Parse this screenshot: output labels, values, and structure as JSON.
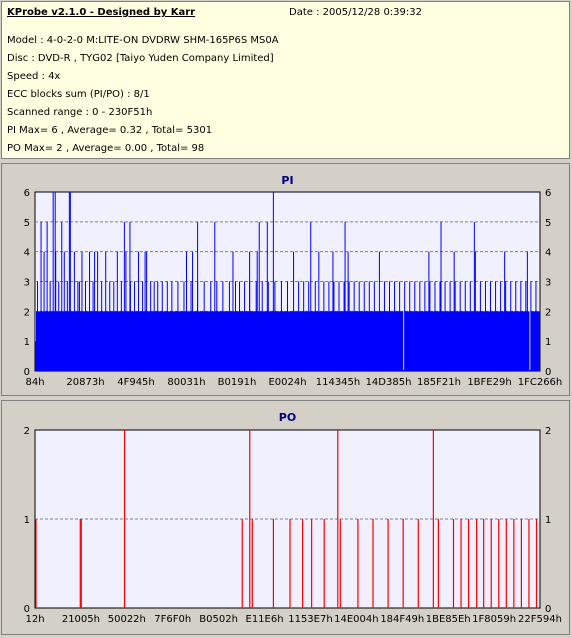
{
  "info": {
    "title": "KProbe v2.1.0 - Designed by Karr",
    "date": "Date : 2005/12/28 0:39:32",
    "model": "Model : 4-0-2-0 M:LITE-ON DVDRW SHM-165P6S MS0A",
    "disc": "Disc : DVD-R , TYG02 [Taiyo Yuden Company Limited]",
    "speed": "Speed : 4x",
    "ecc": "ECC blocks sum (PI/PO) : 8/1",
    "range": "Scanned range : 0 - 230F51h",
    "pi_stats": "PI Max= 6 , Average= 0.32 , Total= 5301",
    "po_stats": "PO Max= 2 , Average= 0.00 , Total= 98"
  },
  "colors": {
    "pi": "#0000ff",
    "po": "#ff0000",
    "plot_bg": "#f0f0ff",
    "info_bg": "#ffffe1"
  },
  "chart_data": [
    {
      "type": "bar",
      "title": "PI",
      "ylim": [
        0,
        6
      ],
      "yticks": [
        "0",
        "1",
        "2",
        "3",
        "4",
        "5",
        "6"
      ],
      "xtick_labels": [
        "84h",
        "20873h",
        "4F945h",
        "80031h",
        "B0191h",
        "E0024h",
        "114345h",
        "14D385h",
        "185F21h",
        "1BFE29h",
        "1FC266h"
      ],
      "grid": true,
      "baseline_value": 2,
      "spikes": [
        {
          "x": 0.005,
          "v": 3
        },
        {
          "x": 0.012,
          "v": 5
        },
        {
          "x": 0.018,
          "v": 4
        },
        {
          "x": 0.024,
          "v": 5
        },
        {
          "x": 0.03,
          "v": 3
        },
        {
          "x": 0.036,
          "v": 6
        },
        {
          "x": 0.041,
          "v": 4
        },
        {
          "x": 0.047,
          "v": 3
        },
        {
          "x": 0.053,
          "v": 5
        },
        {
          "x": 0.058,
          "v": 4
        },
        {
          "x": 0.064,
          "v": 3
        },
        {
          "x": 0.07,
          "v": 6
        },
        {
          "x": 0.078,
          "v": 4
        },
        {
          "x": 0.085,
          "v": 3
        },
        {
          "x": 0.093,
          "v": 4
        },
        {
          "x": 0.1,
          "v": 3
        },
        {
          "x": 0.108,
          "v": 4
        },
        {
          "x": 0.115,
          "v": 3
        },
        {
          "x": 0.124,
          "v": 4
        },
        {
          "x": 0.132,
          "v": 3
        },
        {
          "x": 0.14,
          "v": 4
        },
        {
          "x": 0.148,
          "v": 3
        },
        {
          "x": 0.156,
          "v": 3
        },
        {
          "x": 0.163,
          "v": 4
        },
        {
          "x": 0.171,
          "v": 3
        },
        {
          "x": 0.18,
          "v": 4
        },
        {
          "x": 0.189,
          "v": 3
        },
        {
          "x": 0.197,
          "v": 3
        },
        {
          "x": 0.205,
          "v": 4
        },
        {
          "x": 0.213,
          "v": 3
        },
        {
          "x": 0.221,
          "v": 4
        },
        {
          "x": 0.229,
          "v": 3
        },
        {
          "x": 0.236,
          "v": 3
        },
        {
          "x": 0.243,
          "v": 3
        },
        {
          "x": 0.252,
          "v": 3
        },
        {
          "x": 0.262,
          "v": 3
        },
        {
          "x": 0.271,
          "v": 3
        },
        {
          "x": 0.283,
          "v": 3
        },
        {
          "x": 0.295,
          "v": 3
        },
        {
          "x": 0.309,
          "v": 3
        },
        {
          "x": 0.312,
          "v": 4
        },
        {
          "x": 0.322,
          "v": 3
        },
        {
          "x": 0.335,
          "v": 3
        },
        {
          "x": 0.348,
          "v": 3
        },
        {
          "x": 0.36,
          "v": 3
        },
        {
          "x": 0.372,
          "v": 3
        },
        {
          "x": 0.385,
          "v": 3
        },
        {
          "x": 0.397,
          "v": 3
        },
        {
          "x": 0.405,
          "v": 3
        },
        {
          "x": 0.415,
          "v": 3
        },
        {
          "x": 0.425,
          "v": 3
        },
        {
          "x": 0.438,
          "v": 3
        },
        {
          "x": 0.45,
          "v": 3
        },
        {
          "x": 0.462,
          "v": 3
        },
        {
          "x": 0.475,
          "v": 3
        },
        {
          "x": 0.488,
          "v": 3
        },
        {
          "x": 0.5,
          "v": 3
        },
        {
          "x": 0.512,
          "v": 4
        },
        {
          "x": 0.522,
          "v": 3
        },
        {
          "x": 0.532,
          "v": 3
        },
        {
          "x": 0.542,
          "v": 3
        },
        {
          "x": 0.555,
          "v": 3
        },
        {
          "x": 0.562,
          "v": 4
        },
        {
          "x": 0.572,
          "v": 3
        },
        {
          "x": 0.582,
          "v": 3
        },
        {
          "x": 0.592,
          "v": 3
        },
        {
          "x": 0.602,
          "v": 3
        },
        {
          "x": 0.612,
          "v": 3
        },
        {
          "x": 0.622,
          "v": 3
        },
        {
          "x": 0.632,
          "v": 3
        },
        {
          "x": 0.642,
          "v": 3
        },
        {
          "x": 0.652,
          "v": 3
        },
        {
          "x": 0.662,
          "v": 3
        },
        {
          "x": 0.672,
          "v": 3
        },
        {
          "x": 0.682,
          "v": 4
        },
        {
          "x": 0.692,
          "v": 3
        },
        {
          "x": 0.702,
          "v": 3
        },
        {
          "x": 0.712,
          "v": 3
        },
        {
          "x": 0.722,
          "v": 3
        },
        {
          "x": 0.732,
          "v": 3
        },
        {
          "x": 0.742,
          "v": 3
        },
        {
          "x": 0.752,
          "v": 3
        },
        {
          "x": 0.762,
          "v": 3
        },
        {
          "x": 0.772,
          "v": 3
        },
        {
          "x": 0.782,
          "v": 3
        },
        {
          "x": 0.792,
          "v": 3
        },
        {
          "x": 0.802,
          "v": 3
        },
        {
          "x": 0.812,
          "v": 3
        },
        {
          "x": 0.822,
          "v": 3
        },
        {
          "x": 0.832,
          "v": 3
        },
        {
          "x": 0.842,
          "v": 3
        },
        {
          "x": 0.852,
          "v": 3
        },
        {
          "x": 0.862,
          "v": 3
        },
        {
          "x": 0.872,
          "v": 4
        },
        {
          "x": 0.882,
          "v": 3
        },
        {
          "x": 0.892,
          "v": 3
        },
        {
          "x": 0.902,
          "v": 3
        },
        {
          "x": 0.912,
          "v": 3
        },
        {
          "x": 0.922,
          "v": 3
        },
        {
          "x": 0.932,
          "v": 3
        },
        {
          "x": 0.942,
          "v": 3
        },
        {
          "x": 0.952,
          "v": 3
        },
        {
          "x": 0.962,
          "v": 3
        },
        {
          "x": 0.972,
          "v": 3
        },
        {
          "x": 0.982,
          "v": 3
        },
        {
          "x": 0.992,
          "v": 3
        },
        {
          "x": 0.088,
          "v": 3
        },
        {
          "x": 0.1,
          "v": 3
        },
        {
          "x": 0.118,
          "v": 4
        },
        {
          "x": 0.177,
          "v": 5
        },
        {
          "x": 0.218,
          "v": 4
        },
        {
          "x": 0.3,
          "v": 4
        },
        {
          "x": 0.392,
          "v": 4
        },
        {
          "x": 0.425,
          "v": 4
        },
        {
          "x": 0.44,
          "v": 4
        },
        {
          "x": 0.46,
          "v": 5
        },
        {
          "x": 0.59,
          "v": 4
        },
        {
          "x": 0.62,
          "v": 4
        },
        {
          "x": 0.78,
          "v": 4
        },
        {
          "x": 0.93,
          "v": 4
        },
        {
          "x": 0.975,
          "v": 4
        }
      ],
      "peaks": [
        {
          "x": 0.04,
          "v": 6
        },
        {
          "x": 0.068,
          "v": 6
        },
        {
          "x": 0.472,
          "v": 6
        },
        {
          "x": 0.188,
          "v": 5
        },
        {
          "x": 0.322,
          "v": 5
        },
        {
          "x": 0.356,
          "v": 5
        },
        {
          "x": 0.444,
          "v": 5
        },
        {
          "x": 0.546,
          "v": 5
        },
        {
          "x": 0.614,
          "v": 5
        },
        {
          "x": 0.804,
          "v": 5
        },
        {
          "x": 0.83,
          "v": 4
        },
        {
          "x": 0.87,
          "v": 5
        }
      ],
      "dips": [
        0.73,
        0.98
      ]
    },
    {
      "type": "bar",
      "title": "PO",
      "ylim": [
        0,
        2
      ],
      "yticks": [
        "0",
        "1",
        "2"
      ],
      "xtick_labels": [
        "12h",
        "21005h",
        "50022h",
        "7F6F0h",
        "B0502h",
        "E11E6h",
        "1153E7h",
        "14E004h",
        "184F49h",
        "1BE85Eh",
        "1F8059h",
        "22F594h"
      ],
      "grid": true,
      "bars": [
        {
          "x": 0.0,
          "v": 1
        },
        {
          "x": 0.088,
          "v": 1
        },
        {
          "x": 0.09,
          "v": 1
        },
        {
          "x": 0.176,
          "v": 2
        },
        {
          "x": 0.41,
          "v": 1
        },
        {
          "x": 0.425,
          "v": 2
        },
        {
          "x": 0.43,
          "v": 1
        },
        {
          "x": 0.472,
          "v": 1
        },
        {
          "x": 0.505,
          "v": 1
        },
        {
          "x": 0.53,
          "v": 1
        },
        {
          "x": 0.548,
          "v": 1
        },
        {
          "x": 0.573,
          "v": 1
        },
        {
          "x": 0.6,
          "v": 2
        },
        {
          "x": 0.605,
          "v": 1
        },
        {
          "x": 0.64,
          "v": 1
        },
        {
          "x": 0.67,
          "v": 1
        },
        {
          "x": 0.7,
          "v": 1
        },
        {
          "x": 0.73,
          "v": 1
        },
        {
          "x": 0.76,
          "v": 1
        },
        {
          "x": 0.79,
          "v": 2
        },
        {
          "x": 0.8,
          "v": 1
        },
        {
          "x": 0.83,
          "v": 1
        },
        {
          "x": 0.845,
          "v": 1
        },
        {
          "x": 0.86,
          "v": 1
        },
        {
          "x": 0.876,
          "v": 1
        },
        {
          "x": 0.89,
          "v": 1
        },
        {
          "x": 0.905,
          "v": 1
        },
        {
          "x": 0.92,
          "v": 1
        },
        {
          "x": 0.935,
          "v": 1
        },
        {
          "x": 0.95,
          "v": 1
        },
        {
          "x": 0.965,
          "v": 1
        },
        {
          "x": 0.98,
          "v": 1
        },
        {
          "x": 0.995,
          "v": 1
        }
      ]
    }
  ]
}
